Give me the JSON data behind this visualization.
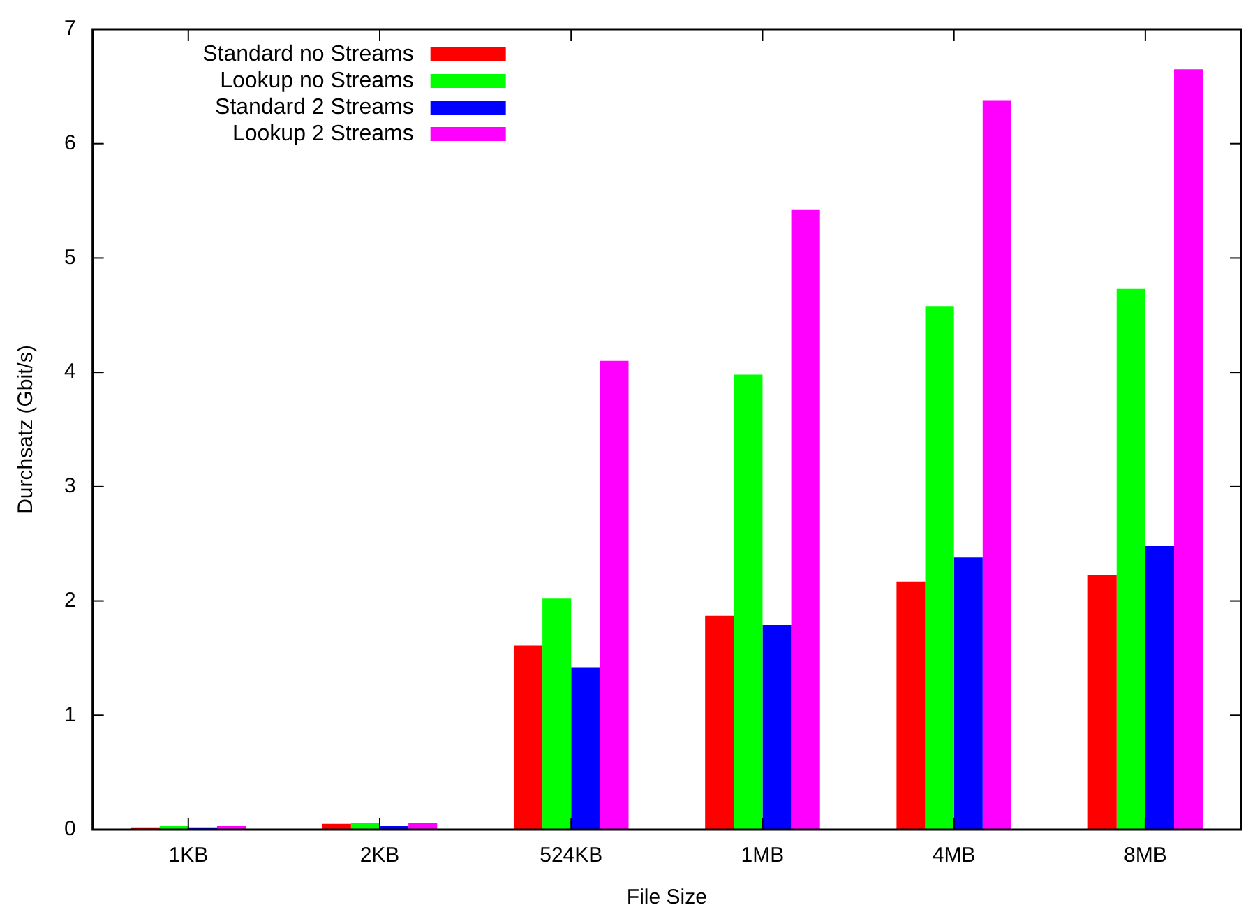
{
  "chart_data": {
    "type": "bar",
    "xlabel": "File Size",
    "ylabel": "Durchsatz (Gbit/s)",
    "categories": [
      "1KB",
      "2KB",
      "524KB",
      "1MB",
      "4MB",
      "8MB"
    ],
    "series": [
      {
        "name": "Standard no Streams",
        "color": "#ff0000",
        "values": [
          0.02,
          0.05,
          1.61,
          1.87,
          2.17,
          2.23
        ]
      },
      {
        "name": "Lookup no Streams",
        "color": "#00ff00",
        "values": [
          0.03,
          0.06,
          2.02,
          3.98,
          4.58,
          4.73
        ]
      },
      {
        "name": "Standard 2 Streams",
        "color": "#0000ff",
        "values": [
          0.02,
          0.03,
          1.42,
          1.79,
          2.38,
          2.48
        ]
      },
      {
        "name": "Lookup 2 Streams",
        "color": "#ff00ff",
        "values": [
          0.03,
          0.06,
          4.1,
          5.42,
          6.38,
          6.65
        ]
      }
    ],
    "ylim": [
      0,
      7
    ],
    "yticks": [
      0,
      1,
      2,
      3,
      4,
      5,
      6,
      7
    ],
    "grid": false,
    "legend": "top left"
  }
}
